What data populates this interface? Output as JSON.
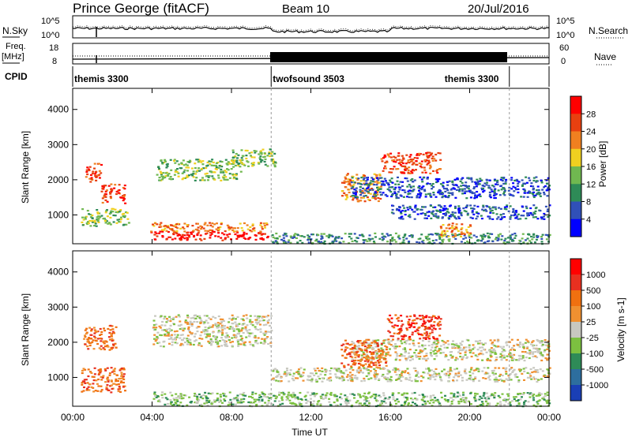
{
  "header": {
    "station": "Prince George (fitACF)",
    "beam": "Beam 10",
    "date": "20/Jul/2016"
  },
  "top_panels": {
    "nsky_label": "N.Sky",
    "nsky_ticks": [
      "10^5",
      "10^0"
    ],
    "nsky_right_ticks": [
      "10^5",
      "10^0"
    ],
    "nsearch_label": "N.Search",
    "freq_label": "Freq.",
    "freq_unit": "[MHz]",
    "freq_ticks": [
      "18",
      "8"
    ],
    "nave_label": "Nave",
    "nave_ticks": [
      "60",
      "0"
    ],
    "cpid_label": "CPID",
    "cpid_segments": [
      {
        "label": "themis 3300",
        "start_h": 0,
        "end_h": 10
      },
      {
        "label": "twofsound 3503",
        "start_h": 10,
        "end_h": 22
      },
      {
        "label": "themis 3300",
        "start_h": 22,
        "end_h": 24
      }
    ]
  },
  "chart_data": [
    {
      "type": "heatmap",
      "name": "power",
      "ylabel": "Slant Range [km]",
      "xlabel": "",
      "ylim": [
        180,
        4600
      ],
      "xlim": [
        0,
        24
      ],
      "yticks": [
        "1000",
        "2000",
        "3000",
        "4000"
      ],
      "colorbar_label": "Power [dB]",
      "colorbar_ticks": [
        "4",
        "8",
        "12",
        "16",
        "20",
        "24",
        "28"
      ],
      "colorbar_colors": [
        "#0000ff",
        "#3050b8",
        "#2e8b57",
        "#70b850",
        "#f0d020",
        "#f08020",
        "#e84010",
        "#ff0000"
      ],
      "features": [
        {
          "t0": 0.6,
          "t1": 1.4,
          "r0": 1950,
          "r1": 2500,
          "level": 6
        },
        {
          "t0": 1.4,
          "t1": 2.6,
          "r0": 1350,
          "r1": 1900,
          "level": 6
        },
        {
          "t0": 0.4,
          "t1": 2.8,
          "r0": 700,
          "r1": 1200,
          "level": 3
        },
        {
          "t0": 3.9,
          "t1": 9.8,
          "r0": 300,
          "r1": 550,
          "level": 7
        },
        {
          "t0": 3.9,
          "t1": 9.8,
          "r0": 550,
          "r1": 800,
          "level": 5
        },
        {
          "t0": 4.2,
          "t1": 8.5,
          "r0": 2000,
          "r1": 2600,
          "level": 3
        },
        {
          "t0": 8.0,
          "t1": 10.2,
          "r0": 2400,
          "r1": 2900,
          "level": 3
        },
        {
          "t0": 13.5,
          "t1": 15.5,
          "r0": 1400,
          "r1": 2200,
          "level": 5
        },
        {
          "t0": 15.5,
          "t1": 18.5,
          "r0": 2200,
          "r1": 2800,
          "level": 6
        },
        {
          "t0": 14.0,
          "t1": 24.0,
          "r0": 1500,
          "r1": 2100,
          "level": 1
        },
        {
          "t0": 16.0,
          "t1": 24.0,
          "r0": 900,
          "r1": 1300,
          "level": 1
        },
        {
          "t0": 10.0,
          "t1": 24.0,
          "r0": 200,
          "r1": 500,
          "level": 2
        },
        {
          "t0": 18.5,
          "t1": 20.0,
          "r0": 400,
          "r1": 800,
          "level": 5
        }
      ]
    },
    {
      "type": "heatmap",
      "name": "velocity",
      "ylabel": "Slant Range [km]",
      "xlabel": "Time UT",
      "ylim": [
        180,
        4600
      ],
      "xlim": [
        0,
        24
      ],
      "yticks": [
        "1000",
        "2000",
        "3000",
        "4000"
      ],
      "xticks": [
        "00:00",
        "04:00",
        "08:00",
        "12:00",
        "16:00",
        "20:00",
        "00:00"
      ],
      "colorbar_label": "Velocity [m s-1]",
      "colorbar_ticks": [
        "1000",
        "500",
        "100",
        "25",
        "-25",
        "-100",
        "-500",
        "-1000"
      ],
      "colorbar_colors": [
        "#1a3fb5",
        "#2d6e9e",
        "#2e8b57",
        "#7cc040",
        "#c8c8c0",
        "#f09030",
        "#f07010",
        "#e83020",
        "#ff0000"
      ],
      "features": [
        {
          "t0": 0.4,
          "t1": 2.6,
          "r0": 600,
          "r1": 1300,
          "level": 6
        },
        {
          "t0": 0.5,
          "t1": 2.2,
          "r0": 1800,
          "r1": 2500,
          "level": 6
        },
        {
          "t0": 4.0,
          "t1": 10.0,
          "r0": 1900,
          "r1": 2800,
          "level": 4
        },
        {
          "t0": 10.0,
          "t1": 24.0,
          "r0": 900,
          "r1": 1300,
          "level": 4
        },
        {
          "t0": 14.0,
          "t1": 24.0,
          "r0": 1500,
          "r1": 2100,
          "level": 4
        },
        {
          "t0": 13.5,
          "t1": 15.8,
          "r0": 1300,
          "r1": 2100,
          "level": 6
        },
        {
          "t0": 15.8,
          "t1": 18.5,
          "r0": 2100,
          "r1": 2800,
          "level": 7
        },
        {
          "t0": 4.0,
          "t1": 24.0,
          "r0": 200,
          "r1": 600,
          "level": 3
        }
      ]
    }
  ]
}
